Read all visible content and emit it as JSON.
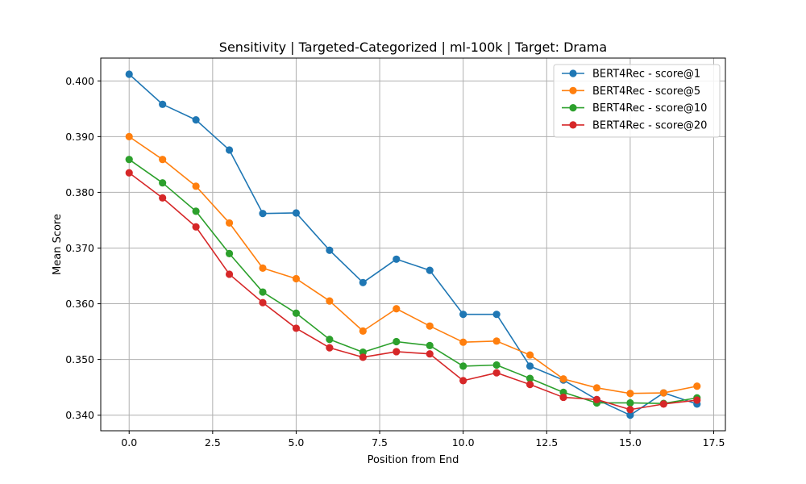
{
  "chart_data": {
    "type": "line",
    "title": "Sensitivity | Targeted-Categorized | ml-100k | Target: Drama",
    "xlabel": "Position from End",
    "ylabel": "Mean Score",
    "xlim": [
      -0.85,
      17.85
    ],
    "ylim": [
      0.3372,
      0.4041
    ],
    "x_ticks": [
      0.0,
      2.5,
      5.0,
      7.5,
      10.0,
      12.5,
      15.0,
      17.5
    ],
    "x_tick_labels": [
      "0.0",
      "2.5",
      "5.0",
      "7.5",
      "10.0",
      "12.5",
      "15.0",
      "17.5"
    ],
    "y_ticks": [
      0.34,
      0.35,
      0.36,
      0.37,
      0.38,
      0.39,
      0.4
    ],
    "y_tick_labels": [
      "0.340",
      "0.350",
      "0.360",
      "0.370",
      "0.380",
      "0.390",
      "0.400"
    ],
    "grid": true,
    "legend_position": "top-right",
    "x": [
      0,
      1,
      2,
      3,
      4,
      5,
      6,
      7,
      8,
      9,
      10,
      11,
      12,
      13,
      14,
      15,
      16,
      17
    ],
    "series": [
      {
        "name": "BERT4Rec - score@1",
        "color": "#1f77b4",
        "values": [
          0.4012,
          0.3958,
          0.393,
          0.3876,
          0.3762,
          0.3763,
          0.3696,
          0.3638,
          0.368,
          0.366,
          0.3581,
          0.3581,
          0.3488,
          0.3463,
          0.3428,
          0.34,
          0.344,
          0.342
        ]
      },
      {
        "name": "BERT4Rec - score@5",
        "color": "#ff7f0e",
        "values": [
          0.39,
          0.3859,
          0.3811,
          0.3745,
          0.3664,
          0.3645,
          0.3605,
          0.3551,
          0.3591,
          0.356,
          0.3531,
          0.3533,
          0.3508,
          0.3465,
          0.3449,
          0.3439,
          0.344,
          0.3452
        ]
      },
      {
        "name": "BERT4Rec - score@10",
        "color": "#2ca02c",
        "values": [
          0.3859,
          0.3817,
          0.3766,
          0.369,
          0.3621,
          0.3583,
          0.3536,
          0.3513,
          0.3532,
          0.3525,
          0.3488,
          0.349,
          0.3466,
          0.3441,
          0.3422,
          0.3422,
          0.3421,
          0.3431
        ]
      },
      {
        "name": "BERT4Rec - score@20",
        "color": "#d62728",
        "values": [
          0.3835,
          0.379,
          0.3738,
          0.3653,
          0.3602,
          0.3556,
          0.3521,
          0.3504,
          0.3514,
          0.351,
          0.3462,
          0.3476,
          0.3455,
          0.3432,
          0.3428,
          0.341,
          0.342,
          0.3427
        ]
      }
    ]
  }
}
